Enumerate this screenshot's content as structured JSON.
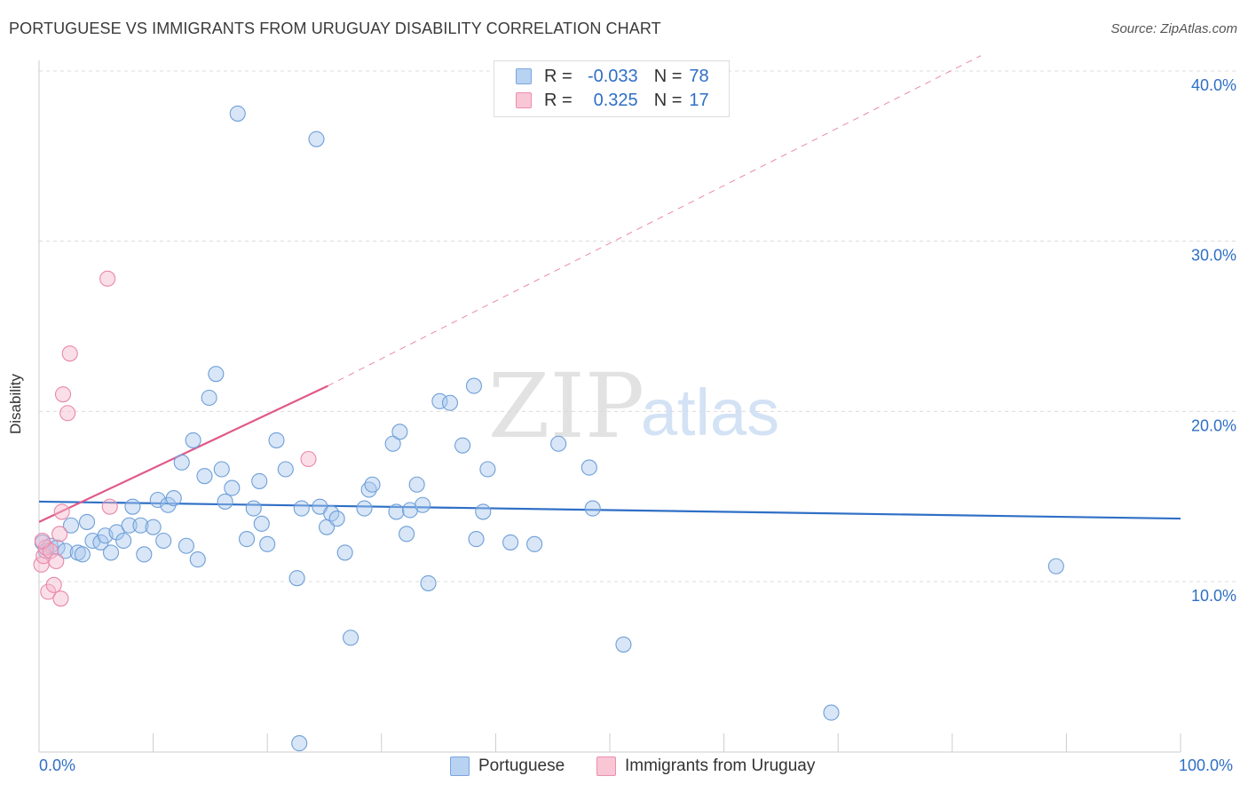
{
  "header": {
    "title": "PORTUGUESE VS IMMIGRANTS FROM URUGUAY DISABILITY CORRELATION CHART",
    "source": "Source: ZipAtlas.com"
  },
  "legend": {
    "rows": [
      {
        "r_label": "R =",
        "r_value": "-0.033",
        "n_label": "N =",
        "n_value": "78"
      },
      {
        "r_label": "R =",
        "r_value": "0.325",
        "n_label": "N =",
        "n_value": "17"
      }
    ]
  },
  "watermark": {
    "zip": "ZIP",
    "atlas": "atlas"
  },
  "colors": {
    "blue_fill": "#a9c8ee",
    "blue_stroke": "#6f9fd8",
    "blue_line": "#2f6fc6",
    "pink_fill": "#f6b8cb",
    "pink_stroke": "#e888a8",
    "pink_line": "#e0588a",
    "grid": "#dcdcdc",
    "axis_text": "#2f6fc6"
  },
  "chart_data": {
    "type": "scatter",
    "title": "PORTUGUESE VS IMMIGRANTS FROM URUGUAY DISABILITY CORRELATION CHART",
    "xlabel": "",
    "ylabel": "Disability",
    "xlim": [
      0,
      100
    ],
    "ylim": [
      0,
      42
    ],
    "x_tick_labels": [
      "0.0%",
      "100.0%"
    ],
    "y_ticks": [
      10,
      20,
      30,
      40
    ],
    "y_tick_labels": [
      "10.0%",
      "20.0%",
      "30.0%",
      "40.0%"
    ],
    "grid": true,
    "series": [
      {
        "name": "Portuguese",
        "color": "#6f9fd8",
        "r": -0.033,
        "n": 78,
        "trend": {
          "x": [
            0,
            100
          ],
          "y": [
            14.7,
            13.7
          ],
          "style": "solid"
        },
        "points": [
          [
            0.3,
            12.3
          ],
          [
            0.6,
            11.8
          ],
          [
            1.0,
            12.1
          ],
          [
            1.6,
            12.0
          ],
          [
            2.3,
            11.8
          ],
          [
            2.8,
            13.3
          ],
          [
            3.4,
            11.7
          ],
          [
            3.8,
            11.6
          ],
          [
            4.2,
            13.5
          ],
          [
            4.7,
            12.4
          ],
          [
            5.4,
            12.3
          ],
          [
            5.8,
            12.7
          ],
          [
            6.3,
            11.7
          ],
          [
            6.8,
            12.9
          ],
          [
            7.4,
            12.4
          ],
          [
            7.9,
            13.3
          ],
          [
            8.2,
            14.4
          ],
          [
            8.9,
            13.3
          ],
          [
            9.2,
            11.6
          ],
          [
            10.0,
            13.2
          ],
          [
            10.4,
            14.8
          ],
          [
            10.9,
            12.4
          ],
          [
            11.3,
            14.5
          ],
          [
            11.8,
            14.9
          ],
          [
            12.5,
            17.0
          ],
          [
            12.9,
            12.1
          ],
          [
            13.5,
            18.3
          ],
          [
            13.9,
            11.3
          ],
          [
            14.5,
            16.2
          ],
          [
            14.9,
            20.8
          ],
          [
            15.5,
            22.2
          ],
          [
            16.0,
            16.6
          ],
          [
            16.3,
            14.7
          ],
          [
            16.9,
            15.5
          ],
          [
            17.4,
            37.5
          ],
          [
            18.2,
            12.5
          ],
          [
            18.8,
            14.3
          ],
          [
            19.3,
            15.9
          ],
          [
            19.5,
            13.4
          ],
          [
            20.0,
            12.2
          ],
          [
            20.8,
            18.3
          ],
          [
            21.6,
            16.6
          ],
          [
            22.6,
            10.2
          ],
          [
            22.8,
            0.5
          ],
          [
            23.0,
            14.3
          ],
          [
            24.3,
            36.0
          ],
          [
            24.6,
            14.4
          ],
          [
            25.2,
            13.2
          ],
          [
            25.6,
            14.0
          ],
          [
            26.1,
            13.7
          ],
          [
            26.8,
            11.7
          ],
          [
            27.3,
            6.7
          ],
          [
            28.5,
            14.3
          ],
          [
            28.9,
            15.4
          ],
          [
            29.2,
            15.7
          ],
          [
            31.0,
            18.1
          ],
          [
            31.3,
            14.1
          ],
          [
            31.6,
            18.8
          ],
          [
            32.2,
            12.8
          ],
          [
            32.5,
            14.2
          ],
          [
            33.1,
            15.7
          ],
          [
            33.6,
            14.5
          ],
          [
            34.1,
            9.9
          ],
          [
            35.1,
            20.6
          ],
          [
            36.0,
            20.5
          ],
          [
            37.1,
            18.0
          ],
          [
            38.1,
            21.5
          ],
          [
            38.3,
            12.5
          ],
          [
            38.9,
            14.1
          ],
          [
            39.3,
            16.6
          ],
          [
            41.3,
            12.3
          ],
          [
            43.4,
            12.2
          ],
          [
            45.5,
            18.1
          ],
          [
            48.2,
            16.7
          ],
          [
            48.5,
            14.3
          ],
          [
            51.2,
            6.3
          ],
          [
            69.4,
            2.3
          ],
          [
            89.1,
            10.9
          ]
        ]
      },
      {
        "name": "Immigrants from Uruguay",
        "color": "#e888a8",
        "r": 0.325,
        "n": 17,
        "trend": {
          "x": [
            0,
            25.3
          ],
          "y": [
            13.5,
            21.5
          ],
          "style": "solid",
          "extended": {
            "x": [
              25.3,
              82.5
            ],
            "y": [
              21.5,
              40.9
            ],
            "style": "dashed"
          }
        },
        "points": [
          [
            0.2,
            11.0
          ],
          [
            0.4,
            11.5
          ],
          [
            0.6,
            12.0
          ],
          [
            0.8,
            9.4
          ],
          [
            1.0,
            11.8
          ],
          [
            1.3,
            9.8
          ],
          [
            1.5,
            11.2
          ],
          [
            1.8,
            12.8
          ],
          [
            1.9,
            9.0
          ],
          [
            2.0,
            14.1
          ],
          [
            2.1,
            21.0
          ],
          [
            2.5,
            19.9
          ],
          [
            2.7,
            23.4
          ],
          [
            6.0,
            27.8
          ],
          [
            6.2,
            14.4
          ],
          [
            23.6,
            17.2
          ],
          [
            0.3,
            12.4
          ]
        ]
      }
    ]
  },
  "bottom_legend": {
    "items": [
      {
        "label": "Portuguese"
      },
      {
        "label": "Immigrants from Uruguay"
      }
    ]
  }
}
